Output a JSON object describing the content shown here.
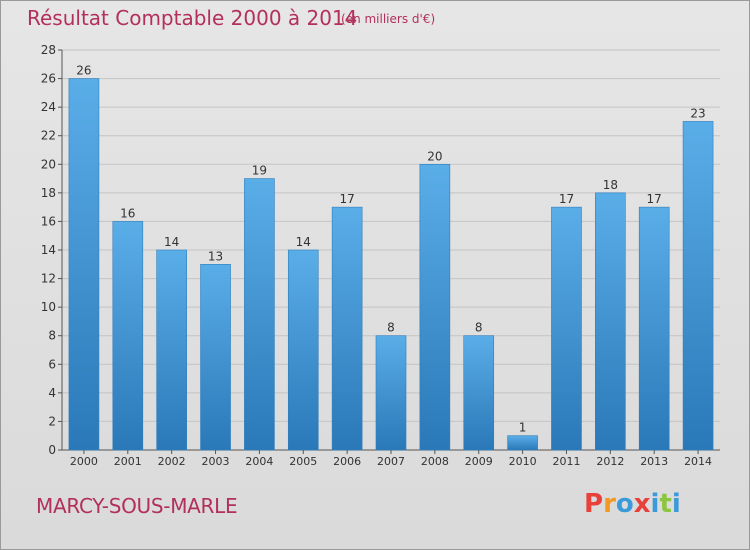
{
  "header": {
    "title": "Résultat Comptable 2000 à 2014",
    "subtitle": "(en milliers d'€)"
  },
  "footer": {
    "commune": "MARCY-SOUS-MARLE",
    "brand": "Proxiti"
  },
  "colors": {
    "title": "#b3305a",
    "bar_top": "#5aaee8",
    "bar_bottom": "#2a78b8",
    "brand_letters": [
      "#e8403a",
      "#f29a1f",
      "#3b9ad9",
      "#e8403a",
      "#3b9ad9",
      "#8cc63f",
      "#3b9ad9"
    ]
  },
  "chart_data": {
    "type": "bar",
    "categories": [
      "2000",
      "2001",
      "2002",
      "2003",
      "2004",
      "2005",
      "2006",
      "2007",
      "2008",
      "2009",
      "2010",
      "2011",
      "2012",
      "2013",
      "2014"
    ],
    "values": [
      26,
      16,
      14,
      13,
      19,
      14,
      17,
      8,
      20,
      8,
      1,
      17,
      18,
      17,
      23
    ],
    "ylim": [
      0,
      28
    ],
    "yticks": [
      0,
      2,
      4,
      6,
      8,
      10,
      12,
      14,
      16,
      18,
      20,
      22,
      24,
      26,
      28
    ],
    "grid": true,
    "xlabel": "",
    "ylabel": ""
  }
}
